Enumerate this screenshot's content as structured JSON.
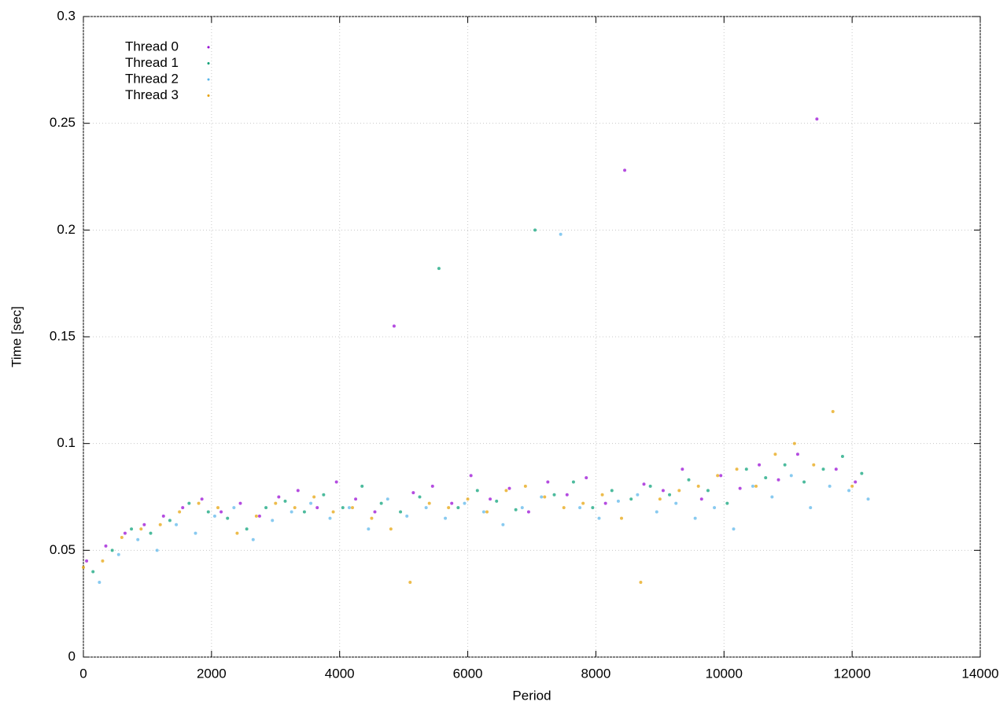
{
  "chart_data": {
    "type": "scatter",
    "x_label": "Period",
    "y_label": "Time [sec]",
    "xlim": [
      0,
      14000
    ],
    "xticks": [
      0,
      2000,
      4000,
      6000,
      8000,
      10000,
      12000,
      14000
    ],
    "ylim": [
      0,
      0.3
    ],
    "yticks": [
      0,
      0.05,
      0.1,
      0.15,
      0.2,
      0.25,
      0.3
    ],
    "grid": true,
    "legend": "top-left",
    "series": [
      {
        "name": "Thread 0",
        "color": "#9400d3",
        "x": [
          50,
          350,
          650,
          950,
          1250,
          1550,
          1850,
          2150,
          2450,
          2750,
          3050,
          3350,
          3650,
          3950,
          4250,
          4550,
          4850,
          5150,
          5450,
          5750,
          6050,
          6350,
          6650,
          6950,
          7250,
          7550,
          7850,
          8150,
          8450,
          8750,
          9050,
          9350,
          9650,
          9950,
          10250,
          10550,
          10850,
          11150,
          11450,
          11750,
          12050
        ],
        "values": [
          0.045,
          0.052,
          0.058,
          0.062,
          0.066,
          0.07,
          0.074,
          0.068,
          0.072,
          0.066,
          0.075,
          0.078,
          0.07,
          0.082,
          0.074,
          0.068,
          0.155,
          0.077,
          0.08,
          0.072,
          0.085,
          0.074,
          0.079,
          0.068,
          0.082,
          0.076,
          0.084,
          0.072,
          0.228,
          0.081,
          0.078,
          0.088,
          0.074,
          0.085,
          0.079,
          0.09,
          0.083,
          0.095,
          0.252,
          0.088,
          0.082
        ]
      },
      {
        "name": "Thread 1",
        "color": "#009e73",
        "x": [
          150,
          450,
          750,
          1050,
          1350,
          1650,
          1950,
          2250,
          2550,
          2850,
          3150,
          3450,
          3750,
          4050,
          4350,
          4650,
          4950,
          5250,
          5550,
          5850,
          6150,
          6450,
          6750,
          7050,
          7350,
          7650,
          7950,
          8250,
          8550,
          8850,
          9150,
          9450,
          9750,
          10050,
          10350,
          10650,
          10950,
          11250,
          11550,
          11850,
          12150
        ],
        "values": [
          0.04,
          0.05,
          0.06,
          0.058,
          0.064,
          0.072,
          0.068,
          0.065,
          0.06,
          0.07,
          0.073,
          0.068,
          0.076,
          0.07,
          0.08,
          0.072,
          0.068,
          0.075,
          0.182,
          0.07,
          0.078,
          0.073,
          0.069,
          0.2,
          0.076,
          0.082,
          0.07,
          0.078,
          0.074,
          0.08,
          0.076,
          0.083,
          0.078,
          0.072,
          0.088,
          0.084,
          0.09,
          0.082,
          0.088,
          0.094,
          0.086
        ]
      },
      {
        "name": "Thread 2",
        "color": "#56b4e9",
        "x": [
          250,
          550,
          850,
          1150,
          1450,
          1750,
          2050,
          2350,
          2650,
          2950,
          3250,
          3550,
          3850,
          4150,
          4450,
          4750,
          5050,
          5350,
          5650,
          5950,
          6250,
          6550,
          6850,
          7150,
          7450,
          7750,
          8050,
          8350,
          8650,
          8950,
          9250,
          9550,
          9850,
          10150,
          10450,
          10750,
          11050,
          11350,
          11650,
          11950,
          12250
        ],
        "values": [
          0.035,
          0.048,
          0.055,
          0.05,
          0.062,
          0.058,
          0.066,
          0.07,
          0.055,
          0.064,
          0.068,
          0.072,
          0.065,
          0.07,
          0.06,
          0.074,
          0.066,
          0.07,
          0.065,
          0.072,
          0.068,
          0.062,
          0.07,
          0.075,
          0.198,
          0.07,
          0.065,
          0.073,
          0.076,
          0.068,
          0.072,
          0.065,
          0.07,
          0.06,
          0.08,
          0.075,
          0.085,
          0.07,
          0.08,
          0.078,
          0.074
        ]
      },
      {
        "name": "Thread 3",
        "color": "#e69f00",
        "x": [
          0,
          300,
          600,
          900,
          1200,
          1500,
          1800,
          2100,
          2400,
          2700,
          3000,
          3300,
          3600,
          3900,
          4200,
          4500,
          4800,
          5100,
          5400,
          5700,
          6000,
          6300,
          6600,
          6900,
          7200,
          7500,
          7800,
          8100,
          8400,
          8700,
          9000,
          9300,
          9600,
          9900,
          10200,
          10500,
          10800,
          11100,
          11400,
          11700,
          12000
        ],
        "values": [
          0.042,
          0.045,
          0.056,
          0.06,
          0.062,
          0.068,
          0.072,
          0.07,
          0.058,
          0.066,
          0.072,
          0.07,
          0.075,
          0.068,
          0.07,
          0.065,
          0.06,
          0.035,
          0.072,
          0.07,
          0.074,
          0.068,
          0.078,
          0.08,
          0.075,
          0.07,
          0.072,
          0.076,
          0.065,
          0.035,
          0.074,
          0.078,
          0.08,
          0.085,
          0.088,
          0.08,
          0.095,
          0.1,
          0.09,
          0.115,
          0.08
        ]
      }
    ]
  }
}
